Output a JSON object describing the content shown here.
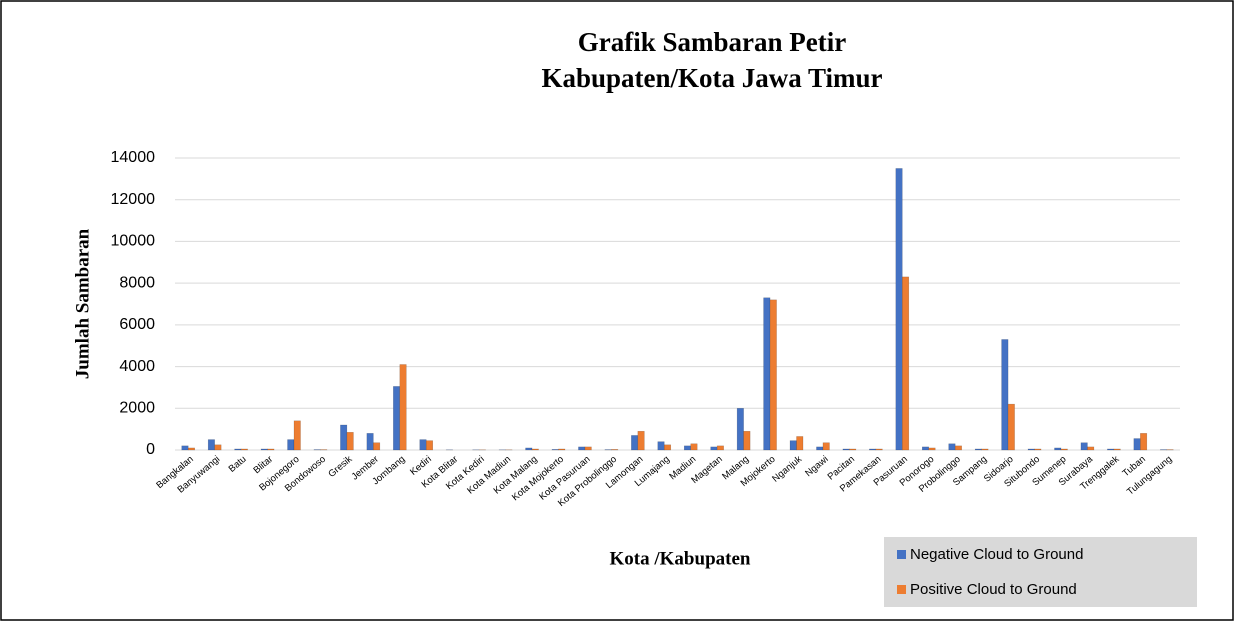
{
  "chart_data": {
    "type": "bar",
    "title": [
      "Grafik Sambaran Petir",
      "Kabupaten/Kota Jawa Timur"
    ],
    "y_label": "Jumlah Sambaran",
    "x_label": "Kota /Kabupaten",
    "categories": [
      "Bangkalan",
      "Banyuwangi",
      "Batu",
      "Blitar",
      "Bojonegoro",
      "Bondowoso",
      "Gresik",
      "Jember",
      "Jombang",
      "Kediri",
      "Kota Blitar",
      "Kota Kediri",
      "Kota Madiun",
      "Kota Malang",
      "Kota Mojokerto",
      "Kota Pasuruan",
      "Kota Probolinggo",
      "Lamongan",
      "Lumajang",
      "Madiun",
      "Magetan",
      "Malang",
      "Mojokerto",
      "Nganjuk",
      "Ngawi",
      "Pacitan",
      "Pamekasan",
      "Pasuruan",
      "Ponorogo",
      "Probolinggo",
      "Sampang",
      "Sidoarjo",
      "Situbondo",
      "Sumenep",
      "Surabaya",
      "Trenggalek",
      "Tuban",
      "Tulungagung"
    ],
    "series": [
      {
        "name": "Negative Cloud to Ground",
        "color": "#4472c4",
        "values": [
          200,
          500,
          50,
          50,
          500,
          20,
          1200,
          800,
          3050,
          500,
          10,
          10,
          10,
          100,
          30,
          150,
          20,
          700,
          400,
          200,
          150,
          2000,
          7300,
          450,
          150,
          50,
          50,
          13500,
          150,
          300,
          50,
          5300,
          50,
          100,
          350,
          50,
          550,
          20
        ]
      },
      {
        "name": "Positive Cloud to Ground",
        "color": "#ed7d31",
        "values": [
          100,
          250,
          50,
          50,
          1400,
          20,
          850,
          350,
          4100,
          450,
          0,
          10,
          10,
          50,
          50,
          150,
          30,
          900,
          250,
          300,
          200,
          900,
          7200,
          650,
          350,
          50,
          50,
          8300,
          100,
          200,
          50,
          2200,
          50,
          50,
          150,
          50,
          800,
          20
        ]
      }
    ],
    "ylim": [
      0,
      14000
    ],
    "yticks": [
      0,
      2000,
      4000,
      6000,
      8000,
      10000,
      12000,
      14000
    ],
    "grid": true,
    "legend": "bottom-right"
  }
}
